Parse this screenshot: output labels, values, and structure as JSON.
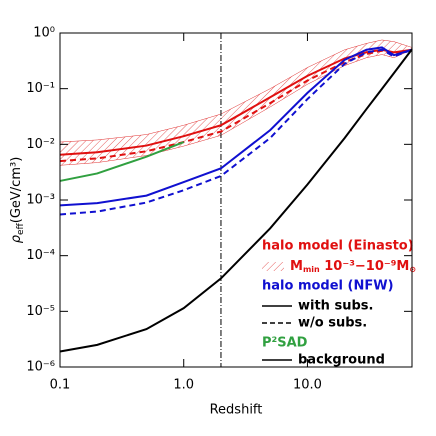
{
  "chart_data": {
    "type": "line",
    "x_label": "Redshift",
    "y_label": {
      "symbol": "ρ",
      "sub": "eff",
      "unit": "(GeV/cm³)"
    },
    "xscale": "log",
    "yscale": "log",
    "xlim": [
      0.1,
      70
    ],
    "ylim": [
      1e-06,
      1
    ],
    "xticks": [
      {
        "value": 0.1,
        "label": "0.1"
      },
      {
        "value": 1,
        "label": "1.0"
      },
      {
        "value": 10,
        "label": "10.0"
      }
    ],
    "yticks": [
      {
        "value": 1e-06,
        "label": "10⁻⁶"
      },
      {
        "value": 1e-05,
        "label": "10⁻⁵"
      },
      {
        "value": 0.0001,
        "label": "10⁻⁴"
      },
      {
        "value": 0.001,
        "label": "10⁻³"
      },
      {
        "value": 0.01,
        "label": "10⁻²"
      },
      {
        "value": 0.1,
        "label": "10⁻¹"
      },
      {
        "value": 1,
        "label": "10⁰"
      }
    ],
    "vline": 2,
    "x": [
      0.1,
      0.2,
      0.5,
      1,
      2,
      5,
      10,
      20,
      30,
      40,
      50,
      70
    ],
    "band": {
      "color": "#e03030",
      "upper": [
        0.011,
        0.012,
        0.015,
        0.022,
        0.035,
        0.1,
        0.24,
        0.5,
        0.65,
        0.75,
        0.7,
        0.55
      ],
      "lower": [
        0.0042,
        0.0047,
        0.0063,
        0.0093,
        0.0145,
        0.047,
        0.12,
        0.26,
        0.36,
        0.41,
        0.36,
        0.5
      ]
    },
    "series": [
      {
        "color": "#e01010",
        "dash": "solid",
        "values": [
          0.0065,
          0.0072,
          0.0095,
          0.014,
          0.022,
          0.07,
          0.17,
          0.35,
          0.45,
          0.5,
          0.45,
          0.5
        ]
      },
      {
        "color": "#e01010",
        "dash": "dashed",
        "values": [
          0.005,
          0.0056,
          0.0075,
          0.011,
          0.017,
          0.055,
          0.14,
          0.3,
          0.42,
          0.48,
          0.42,
          0.5
        ]
      },
      {
        "color": "#1010d0",
        "dash": "solid",
        "values": [
          0.0008,
          0.00088,
          0.0012,
          0.0021,
          0.0037,
          0.018,
          0.084,
          0.33,
          0.5,
          0.55,
          0.4,
          0.5
        ]
      },
      {
        "color": "#1010d0",
        "dash": "dashed",
        "values": [
          0.00055,
          0.00062,
          0.0009,
          0.0015,
          0.0027,
          0.013,
          0.065,
          0.28,
          0.45,
          0.5,
          0.38,
          0.5
        ]
      },
      {
        "name": "P²SAD",
        "color": "#30a040",
        "dash": "solid",
        "values": [
          0.0022,
          0.003,
          0.006,
          0.011,
          null,
          null,
          null,
          null,
          null,
          null,
          null,
          null
        ]
      },
      {
        "name": "background",
        "color": "#000000",
        "dash": "solid",
        "values": [
          1.9e-06,
          2.5e-06,
          4.8e-06,
          1.14e-05,
          3.9e-05,
          0.00031,
          0.0019,
          0.013,
          0.043,
          0.099,
          0.19,
          0.51
        ]
      }
    ],
    "legend": {
      "einasto": "halo model (Einasto)",
      "mmin": {
        "m": "M",
        "sub": "min",
        "range": " 10⁻³−10⁻⁹M",
        "sun": "⊙"
      },
      "nfw": "halo model (NFW)",
      "with": "with subs.",
      "without": "w/o subs."
    }
  }
}
